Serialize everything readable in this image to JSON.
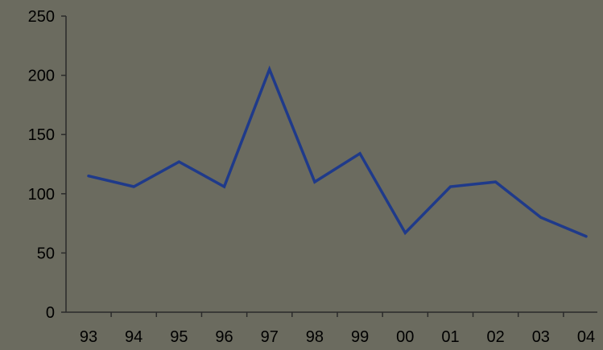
{
  "chart_data": {
    "type": "line",
    "title": "",
    "xlabel": "",
    "ylabel": "",
    "categories": [
      "93",
      "94",
      "95",
      "96",
      "97",
      "98",
      "99",
      "00",
      "01",
      "02",
      "03",
      "04"
    ],
    "series": [
      {
        "values": [
          115,
          106,
          127,
          106,
          205,
          110,
          134,
          67,
          106,
          110,
          80,
          64
        ]
      }
    ],
    "ylim": [
      0,
      250
    ],
    "yticks": [
      "0",
      "50",
      "100",
      "150",
      "200",
      "250"
    ],
    "grid": false,
    "legend": "none",
    "colors": {
      "background": "#6b6b5f",
      "line": "#1f3a8a",
      "axis": "#2a2a2a",
      "text": "#000000"
    }
  }
}
